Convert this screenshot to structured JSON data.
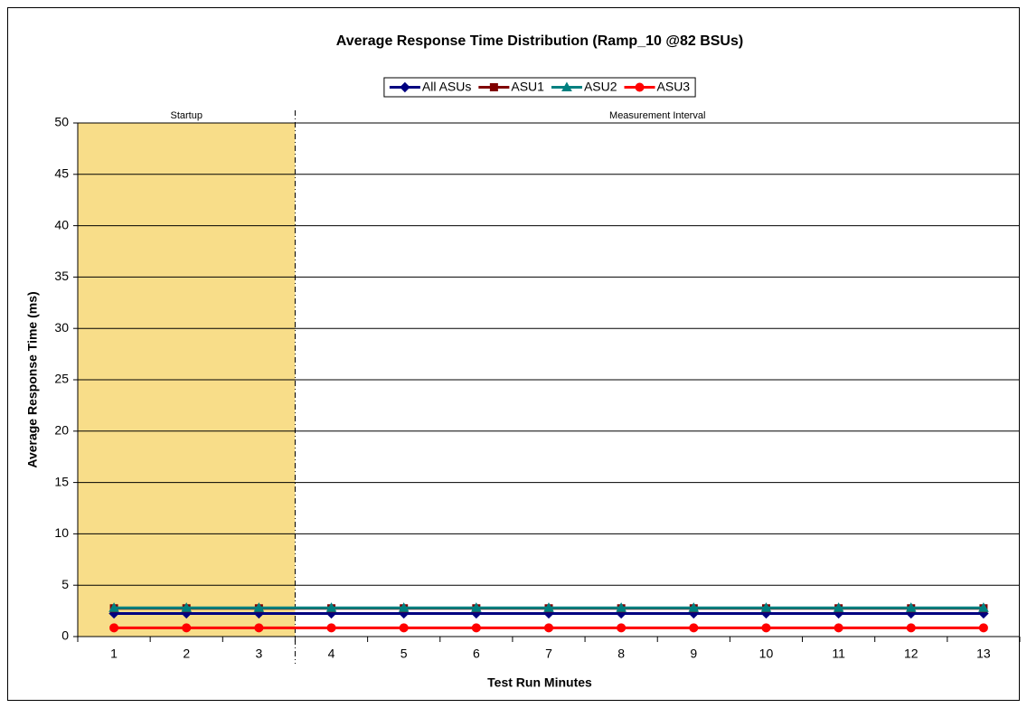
{
  "chart_data": {
    "type": "line",
    "title": "Average Response Time Distribution (Ramp_10 @82 BSUs)",
    "x_label": "Test Run Minutes",
    "y_label": "Average Response Time (ms)",
    "categories": [
      "1",
      "2",
      "3",
      "4",
      "5",
      "6",
      "7",
      "8",
      "9",
      "10",
      "11",
      "12",
      "13"
    ],
    "series": [
      {
        "name": "All ASUs",
        "color": "#000080",
        "marker": "diamond",
        "values": [
          2.25,
          2.25,
          2.25,
          2.25,
          2.25,
          2.25,
          2.25,
          2.25,
          2.25,
          2.25,
          2.25,
          2.25,
          2.25
        ]
      },
      {
        "name": "ASU1",
        "color": "#800000",
        "marker": "square",
        "values": [
          2.75,
          2.75,
          2.75,
          2.75,
          2.75,
          2.75,
          2.75,
          2.75,
          2.75,
          2.75,
          2.75,
          2.75,
          2.75
        ]
      },
      {
        "name": "ASU2",
        "color": "#008080",
        "marker": "triangle",
        "values": [
          2.8,
          2.8,
          2.8,
          2.8,
          2.8,
          2.8,
          2.8,
          2.8,
          2.8,
          2.8,
          2.8,
          2.8,
          2.8
        ]
      },
      {
        "name": "ASU3",
        "color": "#ff0000",
        "marker": "circle",
        "values": [
          0.85,
          0.85,
          0.85,
          0.85,
          0.85,
          0.85,
          0.85,
          0.85,
          0.85,
          0.85,
          0.85,
          0.85,
          0.85
        ]
      }
    ],
    "regions": [
      {
        "label": "Startup",
        "categories": [
          "1",
          "2",
          "3"
        ],
        "color": "#f7d774"
      },
      {
        "label": "Measurement Interval",
        "categories": [
          "4",
          "5",
          "6",
          "7",
          "8",
          "9",
          "10",
          "11",
          "12",
          "13"
        ]
      }
    ],
    "ylim": [
      0,
      50
    ],
    "yticks": [
      0,
      5,
      10,
      15,
      20,
      25,
      30,
      35,
      40,
      45,
      50
    ],
    "grid": true,
    "legend": "top"
  }
}
